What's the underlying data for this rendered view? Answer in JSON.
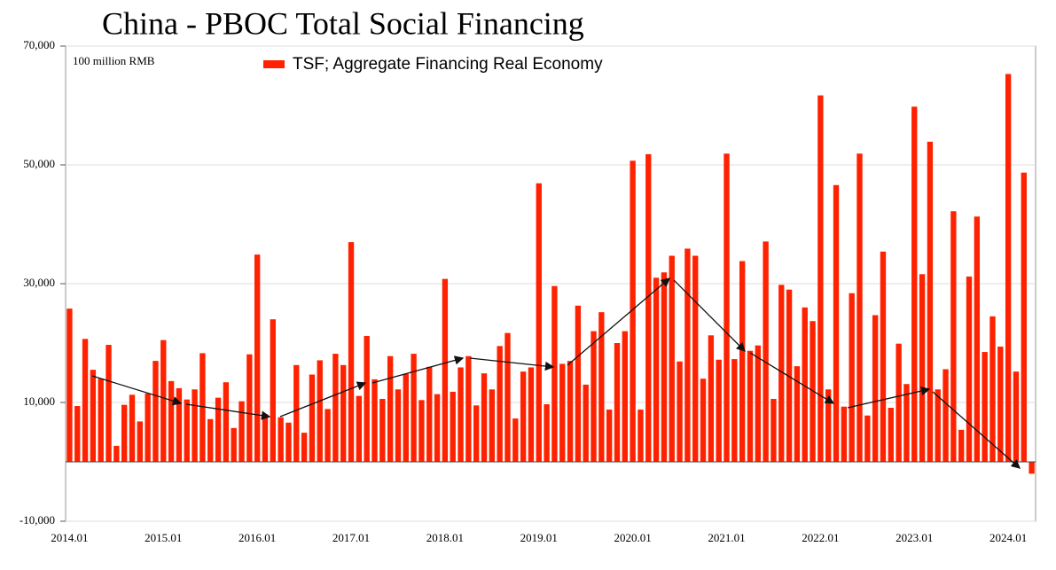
{
  "chart_data": {
    "type": "bar",
    "title": "China - PBOC Total Social Financing",
    "unit_note": "100 million RMB",
    "color": "#ff2200",
    "series": [
      {
        "name": "TSF; Aggregate Financing Real Economy",
        "color": "#ff2200",
        "values": [
          25800,
          9400,
          20700,
          15500,
          14000,
          19700,
          2700,
          9600,
          11300,
          6800,
          11500,
          17000,
          20500,
          13600,
          12400,
          10500,
          12200,
          18300,
          7200,
          10800,
          13400,
          5700,
          10200,
          18100,
          34900,
          8000,
          24000,
          7500,
          6600,
          16300,
          4900,
          14700,
          17100,
          8900,
          18200,
          16300,
          37000,
          11100,
          21200,
          13900,
          10600,
          17800,
          12200,
          14800,
          18200,
          10400,
          16000,
          11400,
          30800,
          11800,
          15900,
          17800,
          9500,
          14900,
          12200,
          19500,
          21700,
          7300,
          15200,
          15900,
          46900,
          9700,
          29600,
          16500,
          17000,
          26300,
          13000,
          22000,
          25200,
          8800,
          20000,
          22000,
          50700,
          8800,
          51800,
          31000,
          31900,
          34700,
          16900,
          35900,
          34700,
          14000,
          21300,
          17200,
          51900,
          17300,
          33800,
          18700,
          19600,
          37100,
          10600,
          29800,
          29000,
          16100,
          26000,
          23700,
          61700,
          12200,
          46600,
          9300,
          28400,
          51900,
          7800,
          24700,
          35400,
          9100,
          19900,
          13100,
          59800,
          31600,
          53900,
          12200,
          15600,
          42200,
          5400,
          31200,
          41300,
          18500,
          24500,
          19400,
          65300,
          15200,
          48700,
          -2000
        ]
      }
    ],
    "categories": [
      "2014.01",
      null,
      null,
      null,
      null,
      null,
      null,
      null,
      null,
      null,
      null,
      null,
      "2015.01",
      null,
      null,
      null,
      null,
      null,
      null,
      null,
      null,
      null,
      null,
      null,
      "2016.01",
      null,
      null,
      null,
      null,
      null,
      null,
      null,
      null,
      null,
      null,
      null,
      "2017.01",
      null,
      null,
      null,
      null,
      null,
      null,
      null,
      null,
      null,
      null,
      null,
      "2018.01",
      null,
      null,
      null,
      null,
      null,
      null,
      null,
      null,
      null,
      null,
      null,
      "2019.01",
      null,
      null,
      null,
      null,
      null,
      null,
      null,
      null,
      null,
      null,
      null,
      "2020.01",
      null,
      null,
      null,
      null,
      null,
      null,
      null,
      null,
      null,
      null,
      null,
      "2021.01",
      null,
      null,
      null,
      null,
      null,
      null,
      null,
      null,
      null,
      null,
      null,
      "2022.01",
      null,
      null,
      null,
      null,
      null,
      null,
      null,
      null,
      null,
      null,
      null,
      "2023.01",
      null,
      null,
      null,
      null,
      null,
      null,
      null,
      null,
      null,
      null,
      null,
      "2024.01",
      null,
      null,
      null
    ],
    "ylim": [
      -10000,
      70000
    ],
    "yticks": [
      {
        "value": -10000,
        "label": "-10,000"
      },
      {
        "value": 10000,
        "label": "10,000"
      },
      {
        "value": 30000,
        "label": "30,000"
      },
      {
        "value": 50000,
        "label": "50,000"
      },
      {
        "value": 70000,
        "label": "70,000"
      }
    ],
    "grid": true,
    "legend": "top"
  }
}
